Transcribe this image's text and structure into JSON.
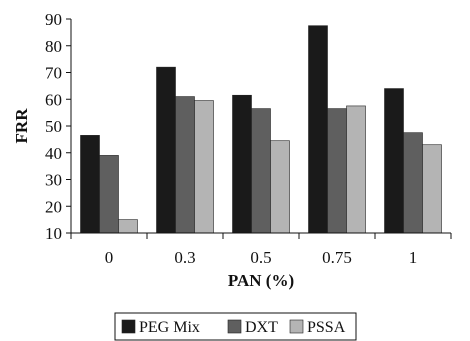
{
  "chart_data": {
    "type": "bar",
    "title": "",
    "xlabel": "PAN (%)",
    "ylabel": "FRR",
    "ylim": [
      10,
      90
    ],
    "yticks": [
      10,
      20,
      30,
      40,
      50,
      60,
      70,
      80,
      90
    ],
    "categories": [
      "0",
      "0.3",
      "0.5",
      "0.75",
      "1"
    ],
    "grid": false,
    "legend_position": "bottom",
    "series": [
      {
        "name": "PEG Mix",
        "color": "#1a1a1a",
        "values": [
          46.5,
          72,
          61.5,
          87.5,
          64
        ]
      },
      {
        "name": "DXT",
        "color": "#5f5f5f",
        "values": [
          39,
          61,
          56.5,
          56.5,
          47.5
        ]
      },
      {
        "name": "PSSA",
        "color": "#b4b4b4",
        "values": [
          15,
          59.5,
          44.5,
          57.5,
          43
        ]
      }
    ]
  }
}
